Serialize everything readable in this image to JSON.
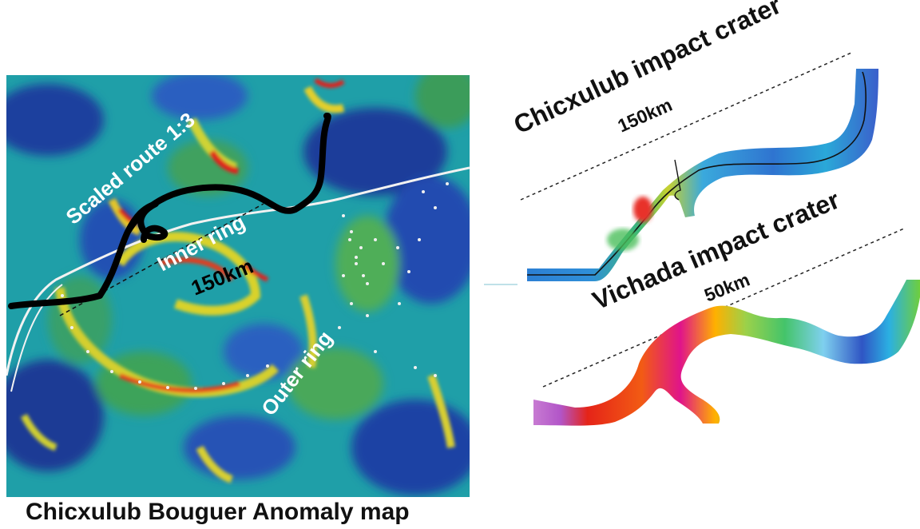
{
  "left_map": {
    "caption": "Chicxulub Bouguer Anomaly map",
    "labels": {
      "route": "Scaled route 1:3",
      "inner_ring": "Inner ring",
      "distance": "150km",
      "outer_ring": "Outer ring"
    }
  },
  "right_panel": {
    "upper": {
      "title": "Chicxulub impact crater",
      "distance": "150km"
    },
    "lower": {
      "title": "Vichada impact crater",
      "distance": "50km"
    }
  },
  "colors": {
    "route_line": "#000000",
    "coastline": "#f2f2f2",
    "anomaly_low": "#1b3f9c",
    "anomaly_mid": "#2aa39a",
    "anomaly_high": "#e3201a"
  }
}
